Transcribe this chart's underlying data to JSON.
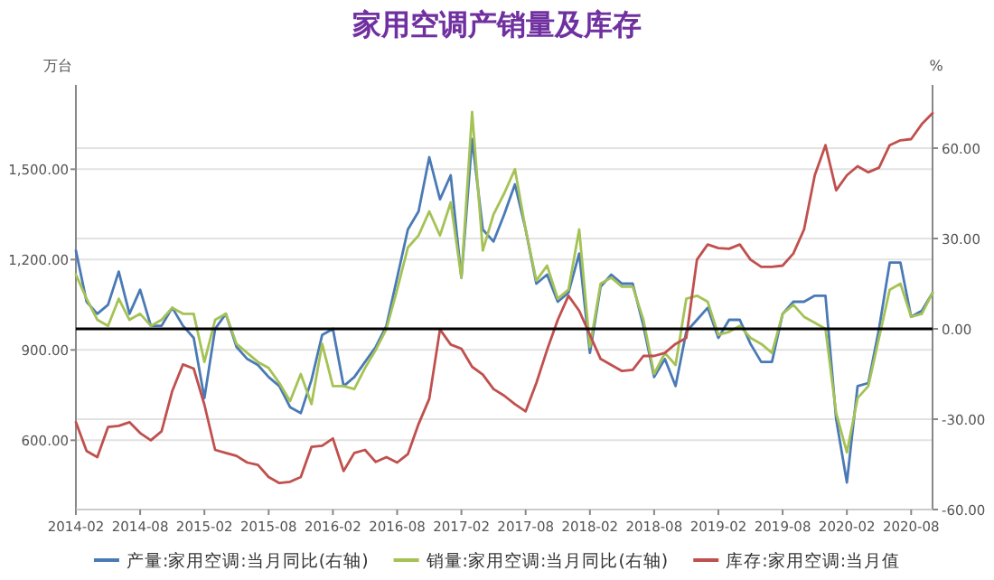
{
  "chart_data": {
    "type": "line",
    "title": "家用空调产销量及库存",
    "ylabel": "万台",
    "y2label": "%",
    "x": [
      "2014-02",
      "2014-03",
      "2014-04",
      "2014-05",
      "2014-06",
      "2014-07",
      "2014-08",
      "2014-09",
      "2014-10",
      "2014-11",
      "2014-12",
      "2015-01",
      "2015-02",
      "2015-03",
      "2015-04",
      "2015-05",
      "2015-06",
      "2015-07",
      "2015-08",
      "2015-09",
      "2015-10",
      "2015-11",
      "2015-12",
      "2016-01",
      "2016-02",
      "2016-03",
      "2016-04",
      "2016-05",
      "2016-06",
      "2016-07",
      "2016-08",
      "2016-09",
      "2016-10",
      "2016-11",
      "2016-12",
      "2017-01",
      "2017-02",
      "2017-03",
      "2017-04",
      "2017-05",
      "2017-06",
      "2017-07",
      "2017-08",
      "2017-09",
      "2017-10",
      "2017-11",
      "2017-12",
      "2018-01",
      "2018-02",
      "2018-03",
      "2018-04",
      "2018-05",
      "2018-06",
      "2018-07",
      "2018-08",
      "2018-09",
      "2018-10",
      "2018-11",
      "2018-12",
      "2019-01",
      "2019-02",
      "2019-03",
      "2019-04",
      "2019-05",
      "2019-06",
      "2019-07",
      "2019-08",
      "2019-09",
      "2019-10",
      "2019-11",
      "2019-12",
      "2020-01",
      "2020-02",
      "2020-03",
      "2020-04",
      "2020-05",
      "2020-06",
      "2020-07",
      "2020-08",
      "2020-09",
      "2020-10"
    ],
    "series": [
      {
        "name": "产量:家用空调:当月同比(右轴)",
        "color": "#4a7ab5",
        "axis": "y2",
        "values": [
          26,
          9,
          5,
          8,
          19,
          5,
          13,
          1,
          1,
          7,
          1,
          -3,
          -23,
          0,
          5,
          -6,
          -10,
          -12,
          -16,
          -19,
          -26,
          -28,
          -17,
          -2,
          0,
          -19,
          -16,
          -11,
          -6,
          1,
          17,
          33,
          39,
          57,
          43,
          51,
          17,
          63,
          33,
          29,
          38,
          48,
          33,
          15,
          18,
          9,
          12,
          25,
          -8,
          14,
          18,
          15,
          15,
          1,
          -16,
          -10,
          -19,
          -1,
          3,
          7,
          -3,
          3,
          3,
          -5,
          -11,
          -11,
          5,
          9,
          9,
          11,
          11,
          -30,
          -51,
          -19,
          -18,
          0,
          22,
          22,
          4,
          6,
          12
        ]
      },
      {
        "name": "销量:家用空调:当月同比(右轴)",
        "color": "#a5c255",
        "axis": "y2",
        "values": [
          18,
          10,
          3,
          1,
          10,
          3,
          5,
          1,
          3,
          7,
          5,
          5,
          -11,
          3,
          5,
          -5,
          -8,
          -11,
          -13,
          -18,
          -24,
          -15,
          -25,
          -5,
          -19,
          -19,
          -20,
          -13,
          -7,
          0,
          13,
          27,
          31,
          39,
          31,
          42,
          17,
          72,
          26,
          38,
          45,
          53,
          33,
          16,
          21,
          10,
          13,
          33,
          -6,
          15,
          17,
          14,
          14,
          3,
          -15,
          -8,
          -12,
          10,
          11,
          9,
          -2,
          -1,
          1,
          -3,
          -5,
          -8,
          5,
          8,
          4,
          2,
          0,
          -28,
          -41,
          -23,
          -19,
          -3,
          13,
          15,
          4,
          5,
          12
        ]
      },
      {
        "name": "库存:家用空调:当月值",
        "color": "#c0504d",
        "axis": "y",
        "values": [
          660,
          564,
          544,
          644,
          648,
          660,
          624,
          600,
          630,
          764,
          852,
          838,
          718,
          568,
          558,
          548,
          526,
          518,
          478,
          458,
          462,
          478,
          578,
          582,
          606,
          498,
          558,
          568,
          528,
          544,
          526,
          554,
          654,
          738,
          968,
          918,
          904,
          844,
          818,
          770,
          748,
          720,
          696,
          790,
          900,
          1000,
          1080,
          1030,
          950,
          870,
          850,
          830,
          834,
          880,
          880,
          890,
          920,
          940,
          1200,
          1250,
          1238,
          1236,
          1250,
          1200,
          1176,
          1176,
          1180,
          1220,
          1300,
          1480,
          1580,
          1430,
          1480,
          1510,
          1490,
          1505,
          1580,
          1596,
          1600,
          1650,
          1686
        ]
      }
    ],
    "xlim": [
      "2014-02",
      "2020-10"
    ],
    "xticks": [
      "2014-02",
      "2014-08",
      "2015-02",
      "2015-08",
      "2016-02",
      "2016-08",
      "2017-02",
      "2017-08",
      "2018-02",
      "2018-08",
      "2019-02",
      "2019-08",
      "2020-02",
      "2020-08"
    ],
    "ylim": [
      370,
      1780
    ],
    "yticks": [
      {
        "value": 600,
        "label": "600.00"
      },
      {
        "value": 900,
        "label": "900.00"
      },
      {
        "value": 1200,
        "label": "1,200.00"
      },
      {
        "value": 1500,
        "label": "1,500.00"
      }
    ],
    "y2lim": [
      -60,
      81
    ],
    "y2ticks": [
      {
        "value": -60,
        "label": "-60.00"
      },
      {
        "value": -30,
        "label": "-30.00"
      },
      {
        "value": 0,
        "label": "0.00"
      },
      {
        "value": 30,
        "label": "30.00"
      },
      {
        "value": 60,
        "label": "60.00"
      }
    ],
    "ref_lines": [
      {
        "axis": "y2",
        "value": 0,
        "color": "#000000"
      }
    ],
    "grid": "y",
    "legend": "bottom"
  }
}
